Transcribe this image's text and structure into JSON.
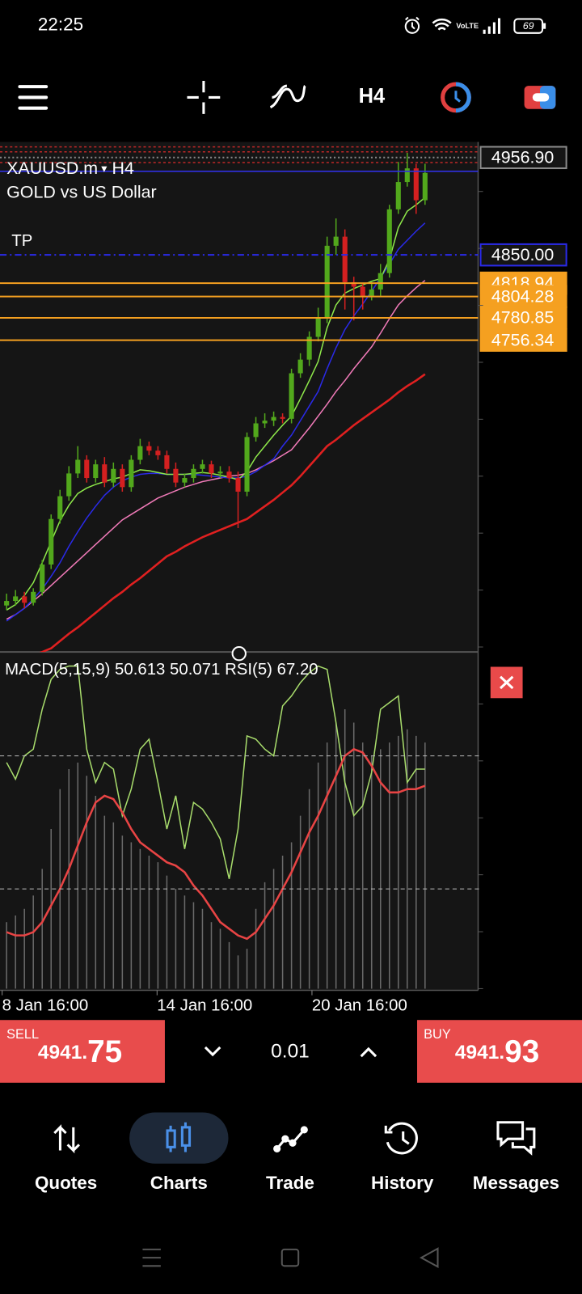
{
  "status_bar": {
    "time": "22:25",
    "battery": "69"
  },
  "toolbar": {
    "timeframe": "H4"
  },
  "chart_data": [
    {
      "type": "candlestick",
      "symbol": "XAUUSD.m",
      "timeframe": "H4",
      "description": "GOLD vs US Dollar",
      "up_color": "#52a81c",
      "down_color": "#d42020",
      "ylim": [
        4414,
        4974
      ],
      "open": [
        4465,
        4470,
        4475,
        4468,
        4480,
        4510,
        4560,
        4585,
        4610,
        4625,
        4605,
        4620,
        4600,
        4615,
        4595,
        4625,
        4640,
        4635,
        4630,
        4615,
        4600,
        4605,
        4615,
        4620,
        4610,
        4612,
        4605,
        4590,
        4650,
        4665,
        4668,
        4672,
        4670,
        4720,
        4735,
        4760,
        4780,
        4860,
        4870,
        4820,
        4815,
        4805,
        4812,
        4830,
        4900,
        4930,
        4945,
        4910
      ],
      "high": [
        4478,
        4482,
        4480,
        4484,
        4515,
        4565,
        4592,
        4618,
        4640,
        4630,
        4625,
        4628,
        4622,
        4620,
        4630,
        4648,
        4645,
        4640,
        4635,
        4622,
        4610,
        4620,
        4625,
        4624,
        4618,
        4618,
        4612,
        4655,
        4672,
        4676,
        4678,
        4676,
        4725,
        4742,
        4766,
        4792,
        4870,
        4890,
        4878,
        4826,
        4818,
        4820,
        4840,
        4905,
        4952,
        4962,
        4950,
        4950
      ],
      "low": [
        4460,
        4465,
        4462,
        4465,
        4476,
        4505,
        4555,
        4580,
        4605,
        4600,
        4600,
        4595,
        4595,
        4590,
        4590,
        4620,
        4630,
        4625,
        4610,
        4595,
        4595,
        4600,
        4610,
        4605,
        4605,
        4600,
        4550,
        4585,
        4645,
        4660,
        4662,
        4665,
        4665,
        4715,
        4728,
        4755,
        4775,
        4850,
        4790,
        4778,
        4790,
        4800,
        4805,
        4825,
        4895,
        4925,
        4895,
        4905
      ],
      "close": [
        4470,
        4475,
        4468,
        4480,
        4510,
        4560,
        4585,
        4610,
        4625,
        4605,
        4620,
        4600,
        4615,
        4595,
        4625,
        4640,
        4635,
        4630,
        4615,
        4600,
        4605,
        4615,
        4620,
        4610,
        4612,
        4605,
        4590,
        4650,
        4665,
        4668,
        4672,
        4670,
        4720,
        4735,
        4760,
        4780,
        4860,
        4870,
        4820,
        4815,
        4805,
        4812,
        4830,
        4900,
        4930,
        4945,
        4910,
        4940
      ],
      "series": [
        {
          "color": "#e02020",
          "values": [
            4396,
            4402,
            4406,
            4410,
            4414,
            4418,
            4426,
            4434,
            4441,
            4449,
            4457,
            4465,
            4473,
            4480,
            4488,
            4495,
            4503,
            4511,
            4519,
            4524,
            4530,
            4535,
            4540,
            4544,
            4548,
            4552,
            4556,
            4560,
            4567,
            4574,
            4581,
            4589,
            4597,
            4607,
            4618,
            4629,
            4640,
            4647,
            4655,
            4663,
            4670,
            4677,
            4684,
            4691,
            4699,
            4706,
            4712,
            4719
          ]
        },
        {
          "color": "#f07ab8",
          "values": [
            4450,
            4455,
            4462,
            4470,
            4478,
            4487,
            4496,
            4505,
            4514,
            4523,
            4532,
            4541,
            4550,
            4559,
            4565,
            4571,
            4577,
            4583,
            4587,
            4591,
            4595,
            4598,
            4601,
            4603,
            4605,
            4607,
            4608,
            4610,
            4614,
            4619,
            4624,
            4630,
            4636,
            4648,
            4660,
            4673,
            4686,
            4700,
            4712,
            4725,
            4737,
            4749,
            4764,
            4780,
            4795,
            4805,
            4814,
            4822
          ]
        },
        {
          "color": "#2a2ae8",
          "values": [
            4448,
            4455,
            4462,
            4472,
            4483,
            4497,
            4512,
            4530,
            4546,
            4561,
            4574,
            4586,
            4595,
            4602,
            4606,
            4609,
            4610,
            4610,
            4609,
            4609,
            4609,
            4609,
            4608,
            4607,
            4606,
            4605,
            4605,
            4607,
            4612,
            4619,
            4626,
            4640,
            4652,
            4668,
            4684,
            4700,
            4725,
            4748,
            4768,
            4783,
            4796,
            4810,
            4825,
            4840,
            4856,
            4866,
            4876,
            4885
          ]
        },
        {
          "color": "#8ee84a",
          "values": [
            4460,
            4466,
            4476,
            4490,
            4512,
            4535,
            4558,
            4575,
            4588,
            4594,
            4598,
            4601,
            4604,
            4606,
            4610,
            4614,
            4613,
            4611,
            4609,
            4609,
            4609,
            4610,
            4611,
            4610,
            4608,
            4606,
            4603,
            4612,
            4628,
            4640,
            4652,
            4663,
            4673,
            4692,
            4712,
            4733,
            4770,
            4795,
            4808,
            4813,
            4817,
            4821,
            4824,
            4845,
            4880,
            4898,
            4905,
            4913
          ]
        }
      ],
      "price_levels": [
        {
          "value": 4956.9,
          "label": "4956.90",
          "color": "#8a8a8a",
          "line_style": "dotted",
          "box": "outline"
        },
        {
          "value": 4850,
          "label": "4850.00",
          "tag": "TP",
          "color": "#2a2ae8",
          "line_style": "dashdot",
          "box": "outline"
        },
        {
          "value": 4818.94,
          "color": "#f5a020",
          "line_style": "solid",
          "box": "filled"
        },
        {
          "value": 4804.28,
          "color": "#f5a020",
          "line_style": "solid",
          "box": "filled"
        },
        {
          "value": 4780.85,
          "color": "#f5a020",
          "line_style": "solid",
          "box": "filled"
        },
        {
          "value": 4756.34,
          "color": "#f5a020",
          "line_style": "solid",
          "box": "filled"
        }
      ],
      "xticks": [
        {
          "value": -0.5,
          "label": "8 Jan 16:00"
        },
        {
          "value": 16.9,
          "label": "14 Jan 16:00"
        },
        {
          "value": 34.3,
          "label": "20 Jan 16:00"
        }
      ]
    },
    {
      "type": "line",
      "title": "MACD(5,15,9) 50.613 50.071 RSI(5) 67.20",
      "ylim": [
        0,
        100
      ],
      "levels": [
        30,
        70
      ],
      "bars": {
        "color": "#6a6a6a",
        "values": [
          20,
          22,
          24,
          28,
          36,
          48,
          60,
          66,
          68,
          64,
          58,
          52,
          50,
          46,
          44,
          42,
          40,
          38,
          34,
          30,
          28,
          26,
          24,
          20,
          18,
          14,
          10,
          12,
          24,
          32,
          36,
          40,
          44,
          52,
          60,
          68,
          74,
          80,
          84,
          80,
          74,
          70,
          72,
          74,
          76,
          78,
          76,
          74
        ]
      },
      "series": [
        {
          "color": "#a8dc6c",
          "values": [
            68,
            63,
            70,
            72,
            84,
            93,
            96,
            97,
            97,
            72,
            62,
            68,
            66,
            52,
            60,
            72,
            75,
            62,
            48,
            58,
            42,
            56,
            54,
            50,
            45,
            33,
            48,
            76,
            75,
            72,
            70,
            85,
            88,
            92,
            95,
            97,
            96,
            80,
            62,
            52,
            55,
            65,
            84,
            86,
            88,
            62,
            66,
            66
          ]
        },
        {
          "color": "#e84444",
          "values": [
            17,
            16,
            16,
            17,
            20,
            25,
            30,
            36,
            43,
            50,
            56,
            58,
            57,
            53,
            48,
            44,
            42,
            40,
            38,
            37,
            35,
            31,
            28,
            24,
            20,
            18,
            16,
            15,
            17,
            21,
            25,
            30,
            35,
            41,
            47,
            52,
            58,
            64,
            70,
            72,
            71,
            67,
            62,
            59,
            59,
            60,
            60,
            61
          ]
        }
      ]
    }
  ],
  "trade": {
    "sell": {
      "label": "SELL",
      "price": 4941.75,
      "price_main": "4941.",
      "price_big": "75"
    },
    "volume": "0.01",
    "buy": {
      "label": "BUY",
      "price_main": "4941.",
      "price_big": "93"
    }
  },
  "nav": [
    "Quotes",
    "Charts",
    "Trade",
    "History",
    "Messages"
  ]
}
